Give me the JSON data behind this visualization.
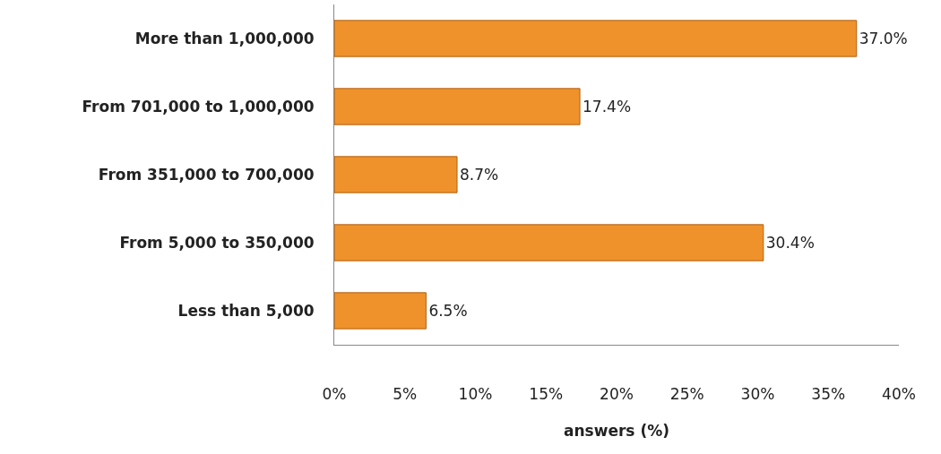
{
  "chart_data": {
    "type": "bar",
    "orientation": "horizontal",
    "xlabel": "answers (%)",
    "categories": [
      "More than 1,000,000",
      "From 701,000 to 1,000,000",
      "From 351,000 to 700,000",
      "From 5,000 to 350,000",
      "Less than 5,000"
    ],
    "values": [
      37.0,
      17.4,
      8.7,
      30.4,
      6.5
    ],
    "value_labels": [
      "37.0%",
      "17.4%",
      "8.7%",
      "30.4%",
      "6.5%"
    ],
    "color": "#f0922b",
    "xlim": [
      0,
      40
    ],
    "grid": false,
    "xticks": [
      {
        "value": 0,
        "label": "0%"
      },
      {
        "value": 5,
        "label": "5%"
      },
      {
        "value": 10,
        "label": "10%"
      },
      {
        "value": 15,
        "label": "15%"
      },
      {
        "value": 20,
        "label": "20%"
      },
      {
        "value": 25,
        "label": "25%"
      },
      {
        "value": 30,
        "label": "30%"
      },
      {
        "value": 35,
        "label": "35%"
      },
      {
        "value": 40,
        "label": "40%"
      }
    ],
    "legend": false
  }
}
